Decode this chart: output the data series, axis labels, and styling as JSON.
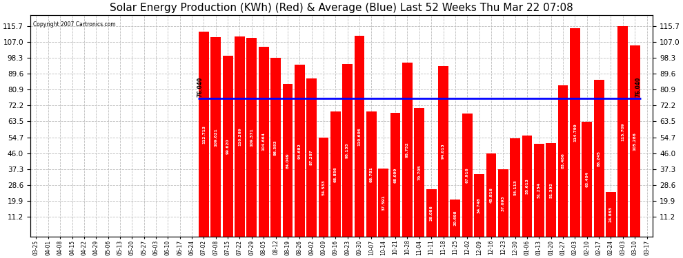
{
  "title": "Solar Energy Production (KWh) (Red) & Average (Blue) Last 52 Weeks Thu Mar 22 07:08",
  "copyright": "Copyright 2007 Cartronics.com",
  "average": 76.04,
  "yticks": [
    11.2,
    19.9,
    28.6,
    37.3,
    46.0,
    54.7,
    63.5,
    72.2,
    80.9,
    89.6,
    98.3,
    107.0,
    115.7
  ],
  "ylim": [
    0,
    122
  ],
  "categories": [
    "03-25",
    "04-01",
    "04-08",
    "04-15",
    "04-22",
    "04-29",
    "05-06",
    "05-13",
    "05-20",
    "05-27",
    "06-03",
    "06-10",
    "06-17",
    "06-24",
    "07-02",
    "07-08",
    "07-15",
    "07-22",
    "07-29",
    "08-05",
    "08-12",
    "08-19",
    "08-26",
    "09-02",
    "09-09",
    "09-16",
    "09-23",
    "09-30",
    "10-07",
    "10-14",
    "10-21",
    "10-28",
    "11-04",
    "11-11",
    "11-18",
    "11-25",
    "12-02",
    "12-09",
    "12-16",
    "12-23",
    "12-30",
    "01-06",
    "01-13",
    "01-20",
    "01-27",
    "02-03",
    "02-10",
    "02-17",
    "02-24",
    "03-03",
    "03-10",
    "03-17"
  ],
  "values": [
    0.0,
    0.0,
    0.0,
    0.0,
    0.0,
    0.0,
    0.0,
    0.0,
    0.0,
    0.0,
    0.0,
    0.0,
    0.0,
    0.0,
    112.713,
    109.621,
    99.62,
    110.269,
    109.371,
    104.664,
    98.383,
    84.049,
    94.682,
    87.207,
    54.533,
    68.856,
    95.135,
    110.606,
    68.781,
    37.591,
    68.099,
    95.752,
    70.705,
    26.086,
    94.013,
    20.698,
    67.916,
    34.748,
    45.816,
    37.093,
    54.113,
    55.613,
    51.254,
    51.392,
    83.486,
    114.799,
    63.404,
    86.245,
    24.863,
    115.709,
    105.286,
    0.0
  ],
  "bar_color": "#ff0000",
  "avg_line_color": "#0000ff",
  "bg_color": "#ffffff",
  "grid_color": "#bbbbbb",
  "title_fontsize": 11,
  "tick_fontsize": 7.5,
  "label_fontsize": 5.5
}
